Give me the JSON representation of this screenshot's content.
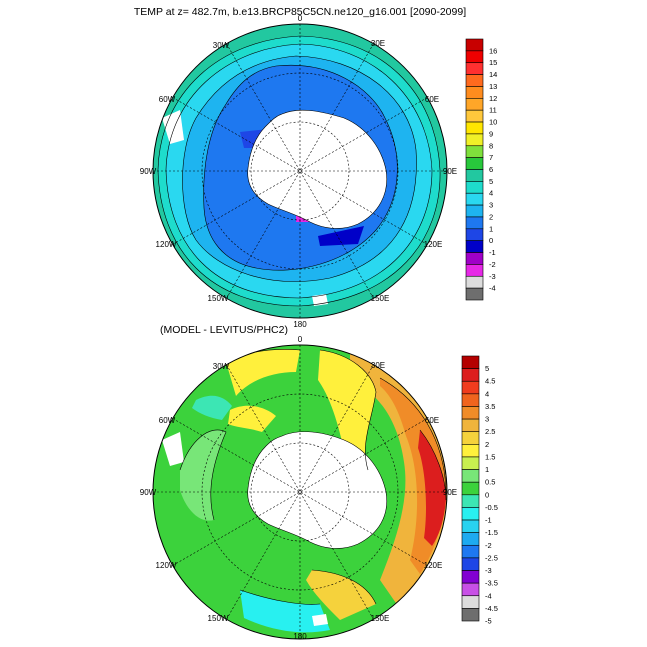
{
  "top_panel": {
    "title": "TEMP at z= 482.7m, b.e13.BRCP85C5CN.ne120_g16.001 [2090-2099]",
    "lon_labels": {
      "top": "0",
      "tr": "30E",
      "r1": "60E",
      "r2": "90E",
      "r3": "120E",
      "br": "150E",
      "bottom": "180",
      "bl": "150W",
      "l3": "120W",
      "l2": "90W",
      "l1": "60W",
      "tl": "30W"
    },
    "colorbar": {
      "labels": [
        "16",
        "15",
        "14",
        "13",
        "12",
        "11",
        "10",
        "9",
        "8",
        "7",
        "6",
        "5",
        "4",
        "3",
        "2",
        "1",
        "0",
        "-1",
        "-2",
        "-3",
        "-4"
      ],
      "colors": [
        "#c80000",
        "#ee0000",
        "#ff3030",
        "#ff6a1e",
        "#ff8c1e",
        "#ffa628",
        "#ffc83c",
        "#ffe600",
        "#f0f028",
        "#7fe03c",
        "#28c83c",
        "#22c8a0",
        "#1edccc",
        "#2ad8f0",
        "#1eb4f0",
        "#1e78f0",
        "#1e46e6",
        "#0000c8",
        "#a000c8",
        "#e628e6",
        "#dcdcdc",
        "#6e6e6e"
      ]
    }
  },
  "bottom_panel": {
    "title": "(MODEL - LEVITUS/PHC2)",
    "lon_labels": {
      "top": "0",
      "tr": "30E",
      "r1": "60E",
      "r2": "90E",
      "r3": "120E",
      "br": "150E",
      "bottom": "180",
      "bl": "150W",
      "l3": "120W",
      "l2": "90W",
      "l1": "60W",
      "tl": "30W"
    },
    "colorbar": {
      "labels": [
        "5",
        "4.5",
        "4",
        "3.5",
        "3",
        "2.5",
        "2",
        "1.5",
        "1",
        "0.5",
        "0",
        "-0.5",
        "-1",
        "-1.5",
        "-2",
        "-2.5",
        "-3",
        "-3.5",
        "-4",
        "-4.5",
        "-5"
      ],
      "colors": [
        "#b40000",
        "#dc1e1e",
        "#f03c1e",
        "#f0641e",
        "#f08c28",
        "#f0b43c",
        "#f5d23c",
        "#fff03c",
        "#c8f050",
        "#78e678",
        "#3cd23c",
        "#3ce6b4",
        "#28f0f0",
        "#28d2f0",
        "#1eaaf0",
        "#1e78f0",
        "#1e46e6",
        "#8200d2",
        "#c850e6",
        "#dcdcdc",
        "#6e6e6e"
      ]
    }
  }
}
